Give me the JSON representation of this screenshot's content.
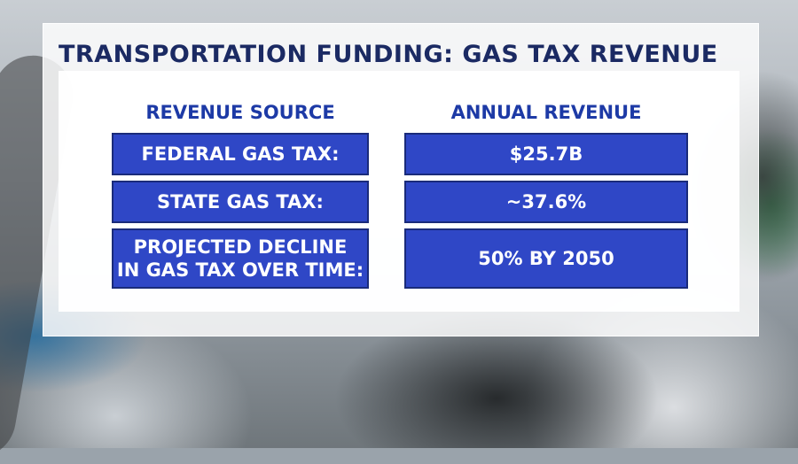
{
  "title": "TRANSPORTATION FUNDING: GAS TAX REVENUE",
  "columns": [
    "REVENUE SOURCE",
    "ANNUAL REVENUE"
  ],
  "rows": [
    {
      "source": "FEDERAL GAS TAX:",
      "value": "$25.7B"
    },
    {
      "source": "STATE GAS TAX:",
      "value": "~37.6%"
    },
    {
      "source": "PROJECTED DECLINE\nIN GAS TAX OVER TIME:",
      "value": "50% BY 2050"
    }
  ],
  "colors": {
    "title": "#1b2a63",
    "header": "#1d3aa6",
    "cell_fill": "#2f47c6",
    "cell_border": "#1a2b7a",
    "cell_text": "#ffffff"
  }
}
